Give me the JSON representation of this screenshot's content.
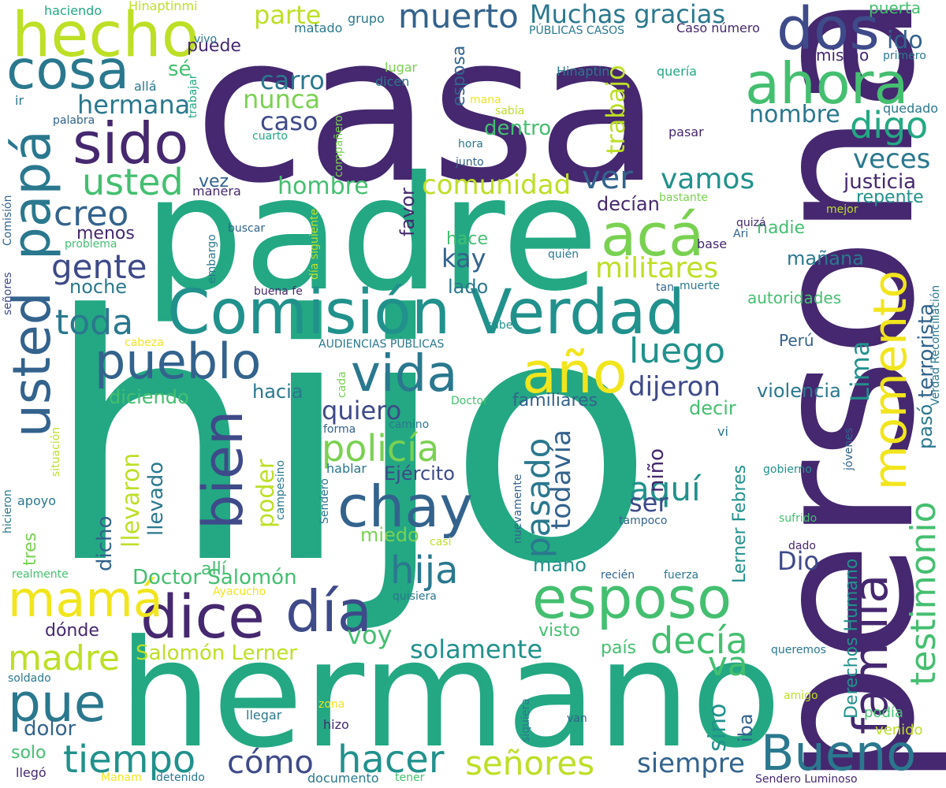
{
  "palette": {
    "dark_purple": "#45286f",
    "indigo": "#3e4a89",
    "blue": "#33638d",
    "teal_blue": "#2a788e",
    "teal": "#21918c",
    "green_teal": "#23a883",
    "green": "#44bf70",
    "light_green": "#7ad151",
    "lime": "#bddf26",
    "yellow": "#f1e51d"
  },
  "words": [
    {
      "text": "casa"
    },
    {
      "text": "hijo"
    },
    {
      "text": "persona"
    },
    {
      "text": "padre"
    },
    {
      "text": "hermano"
    },
    {
      "text": "Comisión Verdad"
    },
    {
      "text": "hecho"
    },
    {
      "text": "dos"
    },
    {
      "text": "cosa"
    },
    {
      "text": "ahora"
    },
    {
      "text": "sido"
    },
    {
      "text": "papá"
    },
    {
      "text": "usted"
    },
    {
      "text": "acá"
    },
    {
      "text": "familia"
    },
    {
      "text": "momento"
    },
    {
      "text": "pueblo"
    },
    {
      "text": "vida"
    },
    {
      "text": "año"
    },
    {
      "text": "bien"
    },
    {
      "text": "chay"
    },
    {
      "text": "esposo"
    },
    {
      "text": "día"
    },
    {
      "text": "dice"
    },
    {
      "text": "mamá"
    },
    {
      "text": "pue"
    },
    {
      "text": "Bueno"
    },
    {
      "text": "tiempo"
    },
    {
      "text": "hacer"
    },
    {
      "text": "señores"
    },
    {
      "text": "muerto"
    },
    {
      "text": "Muchas gracias"
    },
    {
      "text": "digo"
    },
    {
      "text": "luego"
    },
    {
      "text": "policía"
    },
    {
      "text": "hija"
    },
    {
      "text": "decía"
    },
    {
      "text": "testimonio"
    },
    {
      "text": "siempre"
    },
    {
      "text": "cómo"
    },
    {
      "text": "madre"
    },
    {
      "text": "usted"
    },
    {
      "text": "creo"
    },
    {
      "text": "gente"
    },
    {
      "text": "toda"
    },
    {
      "text": "ver"
    },
    {
      "text": "vamos"
    },
    {
      "text": "comunidad"
    },
    {
      "text": "militares"
    },
    {
      "text": "dijeron"
    },
    {
      "text": "pasado"
    },
    {
      "text": "todavía"
    },
    {
      "text": "aquí"
    },
    {
      "text": "Lima"
    },
    {
      "text": "pasó"
    },
    {
      "text": "terrorista"
    },
    {
      "text": "solamente"
    },
    {
      "text": "Salomón Lerner"
    },
    {
      "text": "Doctor Salomón"
    },
    {
      "text": "parte"
    },
    {
      "text": "carro"
    },
    {
      "text": "nunca"
    },
    {
      "text": "caso"
    },
    {
      "text": "hermana"
    },
    {
      "text": "nombre"
    },
    {
      "text": "veces"
    },
    {
      "text": "trabajo"
    },
    {
      "text": "hombre"
    },
    {
      "text": "dentro"
    },
    {
      "text": "ido"
    },
    {
      "text": "justicia"
    },
    {
      "text": "repente"
    },
    {
      "text": "quiero"
    },
    {
      "text": "kay"
    },
    {
      "text": "poder"
    },
    {
      "text": "ser"
    },
    {
      "text": "llevaron"
    },
    {
      "text": "llevado"
    },
    {
      "text": "voy"
    },
    {
      "text": "va"
    },
    {
      "text": "sino"
    },
    {
      "text": "iba"
    },
    {
      "text": "Dio"
    },
    {
      "text": "mano"
    },
    {
      "text": "hacia"
    },
    {
      "text": "violencia"
    },
    {
      "text": "diciendo"
    },
    {
      "text": "familiares"
    },
    {
      "text": "decir"
    },
    {
      "text": "Ejército"
    },
    {
      "text": "miedo"
    },
    {
      "text": "visto"
    },
    {
      "text": "país"
    },
    {
      "text": "niño"
    },
    {
      "text": "dicho"
    },
    {
      "text": "dolor"
    },
    {
      "text": "solo"
    },
    {
      "text": "dónde"
    },
    {
      "text": "Derechos Humano"
    },
    {
      "text": "Lerner Febres"
    },
    {
      "text": "autoridades"
    },
    {
      "text": "mañana"
    },
    {
      "text": "nadie"
    },
    {
      "text": "decían"
    },
    {
      "text": "favor"
    },
    {
      "text": "hace"
    },
    {
      "text": "lado"
    },
    {
      "text": "noche"
    },
    {
      "text": "menos"
    },
    {
      "text": "vez"
    },
    {
      "text": "manera"
    },
    {
      "text": "puede"
    },
    {
      "text": "sé"
    },
    {
      "text": "esposa"
    },
    {
      "text": "mismo"
    },
    {
      "text": "puerta"
    },
    {
      "text": "Perú"
    },
    {
      "text": "podía"
    },
    {
      "text": "venido"
    },
    {
      "text": "allí"
    },
    {
      "text": "tres"
    },
    {
      "text": "haciendo"
    },
    {
      "text": "Hinaptinmi"
    },
    {
      "text": "vivo"
    },
    {
      "text": "matado"
    },
    {
      "text": "grupo"
    },
    {
      "text": "PÚBLICAS CASOS"
    },
    {
      "text": "Caso número"
    },
    {
      "text": "primero"
    },
    {
      "text": "lugar"
    },
    {
      "text": "dicen"
    },
    {
      "text": "Hinaptin"
    },
    {
      "text": "quería"
    },
    {
      "text": "allá"
    },
    {
      "text": "trabajar"
    },
    {
      "text": "ir"
    },
    {
      "text": "palabra"
    },
    {
      "text": "mana"
    },
    {
      "text": "sabía"
    },
    {
      "text": "quedado"
    },
    {
      "text": "cuarto"
    },
    {
      "text": "compañero"
    },
    {
      "text": "hora"
    },
    {
      "text": "pasar"
    },
    {
      "text": "junto"
    },
    {
      "text": "Comisión"
    },
    {
      "text": "señores"
    },
    {
      "text": "problema"
    },
    {
      "text": "buscar"
    },
    {
      "text": "embargo"
    },
    {
      "text": "buena fe"
    },
    {
      "text": "día siguiente"
    },
    {
      "text": "bastante"
    },
    {
      "text": "mejor"
    },
    {
      "text": "quizá"
    },
    {
      "text": "Ari"
    },
    {
      "text": "base"
    },
    {
      "text": "quién"
    },
    {
      "text": "Verdad Reconciliación"
    },
    {
      "text": "tan"
    },
    {
      "text": "muerte"
    },
    {
      "text": "cabeza"
    },
    {
      "text": "AUDIENCIAS PÚBLICAS"
    },
    {
      "text": "sabe"
    },
    {
      "text": "cada"
    },
    {
      "text": "Doctor"
    },
    {
      "text": "camino"
    },
    {
      "text": "forma"
    },
    {
      "text": "situación"
    },
    {
      "text": "hablar"
    },
    {
      "text": "campesino"
    },
    {
      "text": "Sendero"
    },
    {
      "text": "nuevamente"
    },
    {
      "text": "vi"
    },
    {
      "text": "jóvenes"
    },
    {
      "text": "gobierno"
    },
    {
      "text": "sufrido"
    },
    {
      "text": "tampoco"
    },
    {
      "text": "hicieron"
    },
    {
      "text": "apoyo"
    },
    {
      "text": "casi"
    },
    {
      "text": "dado"
    },
    {
      "text": "recién"
    },
    {
      "text": "fuerza"
    },
    {
      "text": "realmente"
    },
    {
      "text": "Ayacucho"
    },
    {
      "text": "quisiera"
    },
    {
      "text": "queremos"
    },
    {
      "text": "soldado"
    },
    {
      "text": "zona"
    },
    {
      "text": "amigo"
    },
    {
      "text": "siquiera"
    },
    {
      "text": "llegar"
    },
    {
      "text": "hizo"
    },
    {
      "text": "van"
    },
    {
      "text": "llegó"
    },
    {
      "text": "Manam"
    },
    {
      "text": "detenido"
    },
    {
      "text": "documento"
    },
    {
      "text": "tener"
    },
    {
      "text": "Sendero Luminoso"
    }
  ]
}
